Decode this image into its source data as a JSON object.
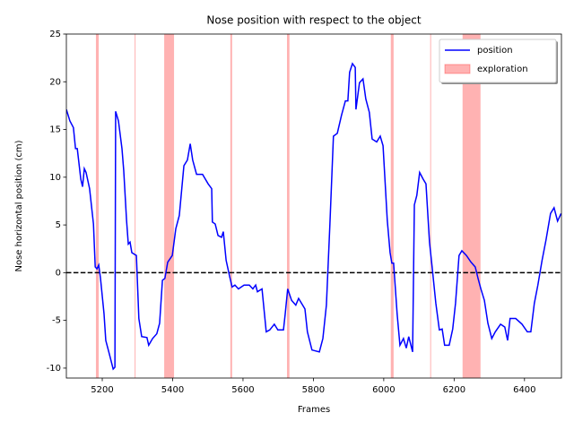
{
  "chart_data": {
    "type": "line",
    "title": "Nose position with respect to the object",
    "x_label": "Frames",
    "y_label": "Nose horizontal position (cm)",
    "xlim": [
      5098,
      6505
    ],
    "ylim": [
      -11.04,
      25
    ],
    "xticks": [
      5200,
      5400,
      5600,
      5800,
      6000,
      6200,
      6400
    ],
    "yticks": [
      -10,
      -5,
      0,
      5,
      10,
      15,
      20,
      25
    ],
    "hline": 0,
    "legend": "upper right",
    "x": [
      5098,
      5108,
      5118,
      5124,
      5129,
      5139,
      5144,
      5149,
      5154,
      5164,
      5175,
      5180,
      5185,
      5190,
      5195,
      5205,
      5210,
      5220,
      5231,
      5236,
      5238,
      5246,
      5256,
      5261,
      5269,
      5274,
      5279,
      5284,
      5297,
      5304,
      5312,
      5327,
      5332,
      5343,
      5355,
      5363,
      5371,
      5378,
      5386,
      5399,
      5409,
      5419,
      5432,
      5442,
      5450,
      5457,
      5468,
      5485,
      5501,
      5511,
      5513,
      5521,
      5529,
      5539,
      5544,
      5552,
      5562,
      5569,
      5577,
      5587,
      5603,
      5618,
      5628,
      5636,
      5641,
      5654,
      5666,
      5676,
      5689,
      5699,
      5715,
      5720,
      5727,
      5738,
      5750,
      5758,
      5776,
      5783,
      5796,
      5817,
      5827,
      5837,
      5847,
      5857,
      5868,
      5880,
      5891,
      5898,
      5903,
      5911,
      5919,
      5921,
      5931,
      5941,
      5949,
      5959,
      5967,
      5980,
      5990,
      5998,
      6010,
      6018,
      6023,
      6028,
      6038,
      6046,
      6056,
      6064,
      6071,
      6082,
      6087,
      6094,
      6102,
      6112,
      6120,
      6130,
      6138,
      6148,
      6158,
      6166,
      6173,
      6186,
      6196,
      6204,
      6214,
      6222,
      6235,
      6248,
      6260,
      6268,
      6276,
      6286,
      6296,
      6307,
      6317,
      6332,
      6344,
      6352,
      6359,
      6375,
      6393,
      6408,
      6418,
      6428,
      6438,
      6450,
      6461,
      6474,
      6484,
      6494,
      6504
    ],
    "series": [
      {
        "name": "position",
        "color": "#0000ff",
        "values": [
          17.1,
          15.9,
          15.2,
          13.0,
          13.0,
          9.8,
          9.0,
          10.9,
          10.5,
          8.8,
          5.1,
          0.6,
          0.4,
          0.8,
          -0.6,
          -4.3,
          -7.1,
          -8.5,
          -10.1,
          -9.9,
          16.9,
          15.9,
          13.0,
          10.7,
          5.5,
          3.0,
          3.2,
          2.1,
          1.8,
          -4.8,
          -6.7,
          -6.8,
          -7.6,
          -6.9,
          -6.4,
          -5.3,
          -0.8,
          -0.6,
          1.1,
          1.8,
          4.6,
          6.0,
          11.2,
          11.8,
          13.5,
          11.8,
          10.3,
          10.3,
          9.3,
          8.8,
          5.3,
          5.1,
          3.9,
          3.7,
          4.3,
          1.3,
          -0.4,
          -1.5,
          -1.3,
          -1.7,
          -1.3,
          -1.3,
          -1.7,
          -1.3,
          -2.0,
          -1.7,
          -6.2,
          -6.0,
          -5.4,
          -6.0,
          -6.0,
          -4.3,
          -1.7,
          -2.9,
          -3.4,
          -2.7,
          -3.8,
          -6.2,
          -8.1,
          -8.3,
          -6.9,
          -3.4,
          5.1,
          14.3,
          14.6,
          16.5,
          18.0,
          18.0,
          21.0,
          21.9,
          21.5,
          17.1,
          19.9,
          20.3,
          18.2,
          16.8,
          14.0,
          13.7,
          14.3,
          13.3,
          5.5,
          2.1,
          1.0,
          1.0,
          -4.3,
          -7.6,
          -6.9,
          -7.9,
          -6.7,
          -8.3,
          7.1,
          8.1,
          10.5,
          9.8,
          9.3,
          3.2,
          0.4,
          -3.2,
          -6.0,
          -5.9,
          -7.6,
          -7.6,
          -5.9,
          -3.2,
          1.8,
          2.3,
          1.8,
          1.1,
          0.6,
          -0.6,
          -1.7,
          -2.9,
          -5.3,
          -6.9,
          -6.2,
          -5.4,
          -5.7,
          -7.1,
          -4.8,
          -4.8,
          -5.4,
          -6.2,
          -6.2,
          -3.2,
          -1.3,
          1.3,
          3.4,
          6.2,
          6.8,
          5.4,
          6.2
        ]
      },
      {
        "name": "exploration",
        "color": "#ff0000",
        "spans": [
          [
            5182,
            5190
          ],
          [
            5292,
            5293
          ],
          [
            5376,
            5404
          ],
          [
            5564,
            5569
          ],
          [
            5725,
            5732
          ],
          [
            6020,
            6028
          ],
          [
            6132,
            6134
          ],
          [
            6224,
            6275
          ]
        ]
      }
    ]
  }
}
